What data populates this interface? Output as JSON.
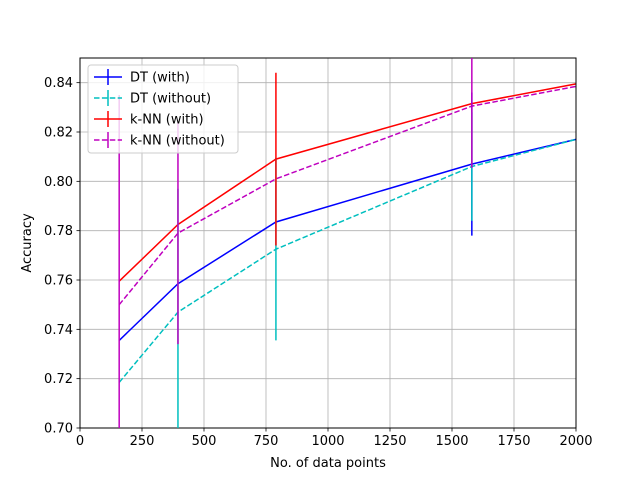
{
  "chart_data": {
    "type": "line",
    "title": "",
    "xlabel": "No. of data points",
    "ylabel": "Accuracy",
    "xlim": [
      0,
      2000
    ],
    "ylim": [
      0.7,
      0.85
    ],
    "grid": true,
    "legend_position": "top-left",
    "x_ticks": [
      0,
      250,
      500,
      750,
      1000,
      1250,
      1500,
      1750,
      2000
    ],
    "x_tick_labels": [
      "0",
      "250",
      "500",
      "750",
      "1000",
      "1250",
      "1500",
      "1750",
      "2000"
    ],
    "y_ticks": [
      0.7,
      0.72,
      0.74,
      0.76,
      0.78,
      0.8,
      0.82,
      0.84
    ],
    "y_tick_labels": [
      "0.70",
      "0.72",
      "0.74",
      "0.76",
      "0.78",
      "0.80",
      "0.82",
      "0.84"
    ],
    "x": [
      158,
      395,
      790,
      1580,
      2000
    ],
    "series": [
      {
        "name": "DT (with)",
        "color": "#0000ff",
        "dash": "solid",
        "values": [
          0.7355,
          0.7585,
          0.7835,
          0.807,
          0.817
        ],
        "errors": [
          null,
          null,
          null,
          0.029,
          null
        ]
      },
      {
        "name": "DT (without)",
        "color": "#00bfbf",
        "dash": "dashed",
        "values": [
          0.7185,
          0.747,
          0.7725,
          0.806,
          0.817
        ],
        "errors": [
          null,
          0.05,
          0.037,
          0.022,
          null
        ]
      },
      {
        "name": "k-NN (with)",
        "color": "#ff0000",
        "dash": "solid",
        "values": [
          0.7595,
          0.7825,
          0.809,
          0.8315,
          0.8395
        ],
        "errors": [
          null,
          null,
          0.035,
          null,
          null
        ]
      },
      {
        "name": "k-NN (without)",
        "color": "#bf00bf",
        "dash": "dashed",
        "values": [
          0.75,
          0.779,
          0.801,
          0.8305,
          0.8385
        ],
        "errors": [
          0.085,
          0.045,
          null,
          0.025,
          null
        ]
      }
    ]
  }
}
